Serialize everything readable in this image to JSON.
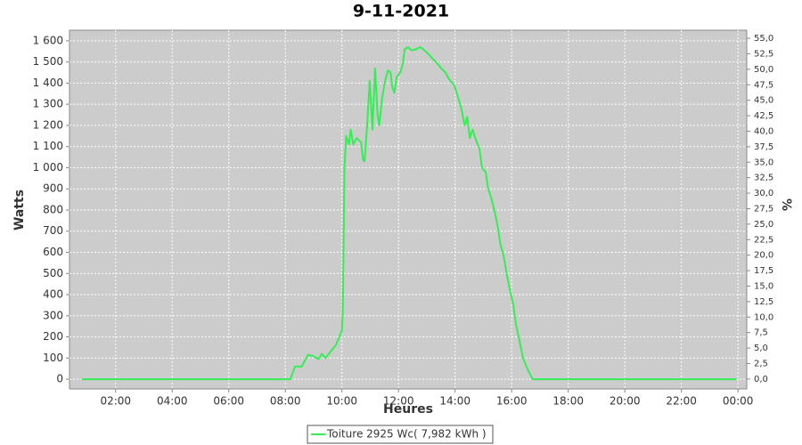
{
  "chart_data": {
    "type": "line",
    "title": "9-11-2021",
    "xlabel": "Heures",
    "ylabel": "Watts",
    "y2label": "%",
    "grid": true,
    "legend": "bottom",
    "xlim": [
      0.37,
      24.31
    ],
    "ylim": [
      -46,
      1650
    ],
    "y2lim": [
      -1.6,
      56.3
    ],
    "xticks": [
      {
        "value": 2,
        "label": "02:00"
      },
      {
        "value": 4,
        "label": "04:00"
      },
      {
        "value": 6,
        "label": "06:00"
      },
      {
        "value": 8,
        "label": "08:00"
      },
      {
        "value": 10,
        "label": "10:00"
      },
      {
        "value": 12,
        "label": "12:00"
      },
      {
        "value": 14,
        "label": "14:00"
      },
      {
        "value": 16,
        "label": "16:00"
      },
      {
        "value": 18,
        "label": "18:00"
      },
      {
        "value": 20,
        "label": "20:00"
      },
      {
        "value": 22,
        "label": "22:00"
      },
      {
        "value": 24,
        "label": "00:00"
      }
    ],
    "yticks": [
      0,
      100,
      200,
      300,
      400,
      500,
      600,
      700,
      800,
      900,
      {
        "value": 1000,
        "label": "1 000"
      },
      {
        "value": 1100,
        "label": "1 100"
      },
      {
        "value": 1200,
        "label": "1 200"
      },
      {
        "value": 1300,
        "label": "1 300"
      },
      {
        "value": 1400,
        "label": "1 400"
      },
      {
        "value": 1500,
        "label": "1 500"
      },
      {
        "value": 1600,
        "label": "1 600"
      }
    ],
    "y2ticks": [
      {
        "value": 0,
        "label": "0,0"
      },
      {
        "value": 2.5,
        "label": "2,5"
      },
      {
        "value": 5,
        "label": "5,0"
      },
      {
        "value": 7.5,
        "label": "7,5"
      },
      {
        "value": 10,
        "label": "10,0"
      },
      {
        "value": 12.5,
        "label": "12,5"
      },
      {
        "value": 15,
        "label": "15,0"
      },
      {
        "value": 17.5,
        "label": "17,5"
      },
      {
        "value": 20,
        "label": "20,0"
      },
      {
        "value": 22.5,
        "label": "22,5"
      },
      {
        "value": 25,
        "label": "25,0"
      },
      {
        "value": 27.5,
        "label": "27,5"
      },
      {
        "value": 30,
        "label": "30,0"
      },
      {
        "value": 32.5,
        "label": "32,5"
      },
      {
        "value": 35,
        "label": "35,0"
      },
      {
        "value": 37.5,
        "label": "37,5"
      },
      {
        "value": 40,
        "label": "40,0"
      },
      {
        "value": 42.5,
        "label": "42,5"
      },
      {
        "value": 45,
        "label": "45,0"
      },
      {
        "value": 47.5,
        "label": "47,5"
      },
      {
        "value": 50,
        "label": "50,0"
      },
      {
        "value": 52.5,
        "label": "52,5"
      },
      {
        "value": 55,
        "label": "55,0"
      }
    ],
    "x": [
      0.8,
      8.18,
      8.34,
      8.58,
      8.8,
      8.98,
      9.17,
      9.29,
      9.42,
      9.6,
      9.78,
      9.91,
      10.0,
      10.03,
      10.09,
      10.15,
      10.25,
      10.31,
      10.4,
      10.52,
      10.68,
      10.74,
      10.8,
      10.89,
      10.98,
      11.08,
      11.17,
      11.26,
      11.32,
      11.42,
      11.54,
      11.63,
      11.72,
      11.78,
      11.85,
      11.94,
      12.06,
      12.15,
      12.22,
      12.34,
      12.46,
      12.62,
      12.77,
      12.92,
      13.11,
      13.32,
      13.51,
      13.66,
      13.78,
      13.97,
      14.09,
      14.22,
      14.34,
      14.43,
      14.52,
      14.62,
      14.74,
      14.86,
      14.95,
      15.08,
      15.17,
      15.29,
      15.42,
      15.51,
      15.6,
      15.72,
      15.82,
      15.94,
      16.06,
      16.15,
      16.28,
      16.4,
      16.55,
      16.74,
      23.95
    ],
    "series": [
      {
        "name": "Toiture 2925 Wc( 7,982 kWh )",
        "color": "#33ee55",
        "values": [
          0,
          0,
          60,
          60,
          115,
          110,
          95,
          120,
          100,
          130,
          160,
          200,
          230,
          320,
          1000,
          1150,
          1110,
          1180,
          1110,
          1140,
          1120,
          1040,
          1030,
          1200,
          1410,
          1180,
          1470,
          1250,
          1200,
          1330,
          1420,
          1460,
          1450,
          1380,
          1355,
          1430,
          1450,
          1490,
          1560,
          1570,
          1555,
          1560,
          1570,
          1555,
          1530,
          1500,
          1470,
          1450,
          1420,
          1390,
          1340,
          1280,
          1200,
          1240,
          1140,
          1180,
          1130,
          1090,
          1000,
          980,
          900,
          850,
          780,
          720,
          640,
          580,
          500,
          420,
          350,
          260,
          180,
          100,
          50,
          0,
          0
        ]
      }
    ]
  }
}
